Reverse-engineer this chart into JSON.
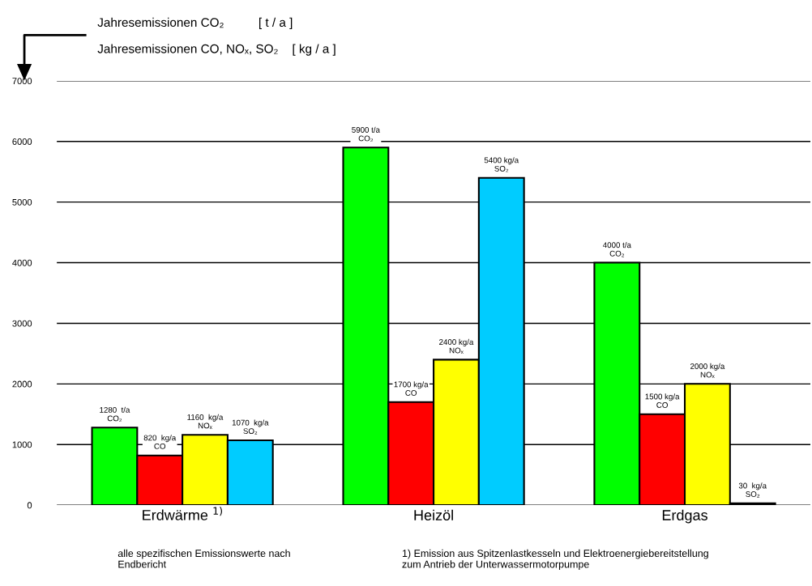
{
  "chart_data": {
    "type": "bar",
    "categories": [
      "Erdwärme $^{1)}$",
      "Heizöl",
      "Erdgas"
    ],
    "series": [
      {
        "color": "#00ff00",
        "values": [
          1280,
          5900,
          4000
        ],
        "value_labels": [
          "1280  t/a\nCO₂",
          "5900 t/a\nCO₂",
          "4000 t/a\nCO₂"
        ]
      },
      {
        "color": "#ff0000",
        "values": [
          820,
          1700,
          1500
        ],
        "value_labels": [
          "820  kg/a\nCO",
          "1700 kg/a\nCO",
          "1500 kg/a\nCO"
        ]
      },
      {
        "color": "#ffff00",
        "values": [
          1160,
          2400,
          2000
        ],
        "value_labels": [
          "1160  kg/a\nNOₓ",
          "2400 kg/a\nNOₓ",
          "2000 kg/a\nNOₓ"
        ]
      },
      {
        "color": "#00ccff",
        "values": [
          1070,
          5400,
          30
        ],
        "value_labels": [
          "1070  kg/a\nSO₂",
          "5400 kg/a\nSO₂",
          "30  kg/a\nSO₂"
        ]
      }
    ],
    "ylim": [
      0,
      7000
    ],
    "yticks": [
      0,
      1000,
      2000,
      3000,
      4000,
      5000,
      6000,
      7000
    ],
    "grid": "y",
    "annotations": [
      "Jahresemissionen CO₂          [ t / a ]",
      "Jahresemissionen CO, NOₓ, SO₂    [ kg / a ]",
      "alle spezifischen Emissionswerte nach\nEndbericht",
      "1) Emission aus Spitzenlastkesseln und Elektroenergiebereitstellung\nzum Antrieb der Unterwassermotorpumpe"
    ]
  }
}
